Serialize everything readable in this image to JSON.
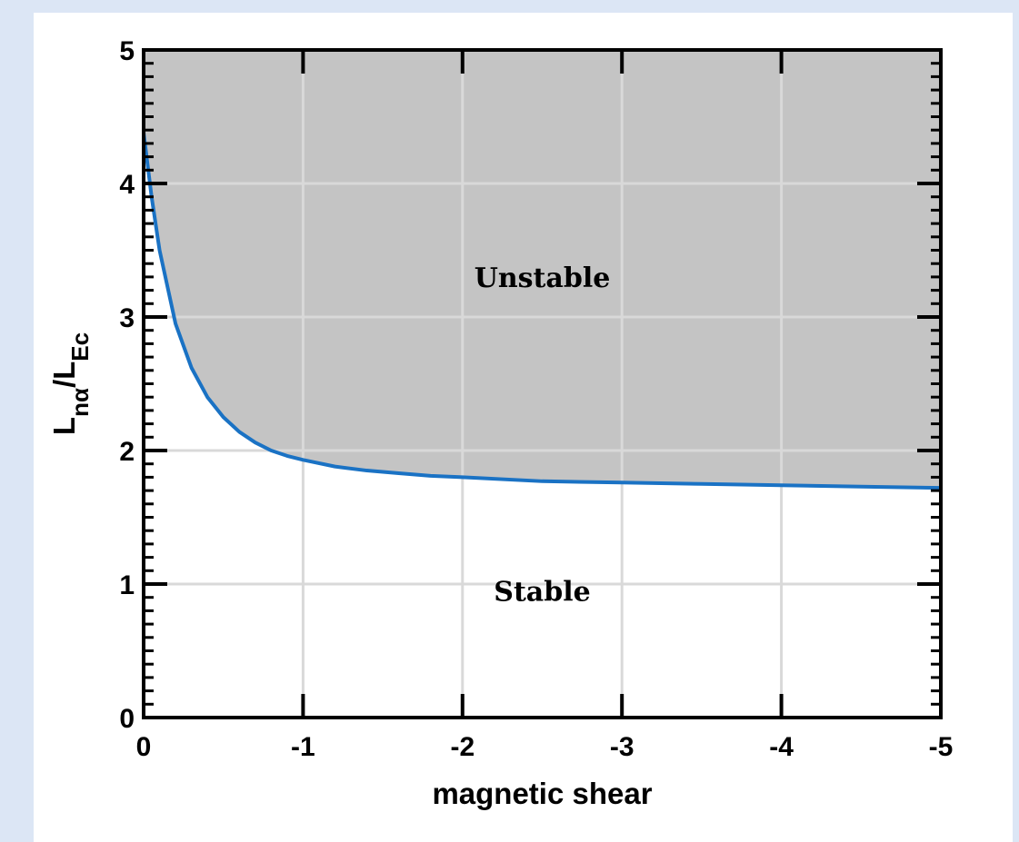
{
  "chart_data": {
    "type": "line",
    "title": "",
    "xlabel": "magnetic shear",
    "ylabel": {
      "main": "L",
      "sub1": "nα",
      "slash": "/L",
      "sub2": "Ec"
    },
    "xlim": [
      0,
      -5
    ],
    "ylim": [
      0,
      5
    ],
    "x_ticks": [
      "0",
      "-1",
      "-2",
      "-3",
      "-4",
      "-5"
    ],
    "x_tick_values": [
      0,
      -1,
      -2,
      -3,
      -4,
      -5
    ],
    "y_ticks": [
      "0",
      "1",
      "2",
      "3",
      "4",
      "5"
    ],
    "y_tick_values": [
      0,
      1,
      2,
      3,
      4,
      5
    ],
    "grid": true,
    "series": [
      {
        "color": "#1a72c4",
        "x": [
          0,
          -0.05,
          -0.1,
          -0.2,
          -0.3,
          -0.4,
          -0.5,
          -0.6,
          -0.7,
          -0.8,
          -0.9,
          -1.0,
          -1.2,
          -1.4,
          -1.6,
          -1.8,
          -2.0,
          -2.5,
          -3.0,
          -3.5,
          -4.0,
          -4.5,
          -5.0
        ],
        "y": [
          4.38,
          3.9,
          3.5,
          2.95,
          2.62,
          2.4,
          2.25,
          2.14,
          2.06,
          2.0,
          1.96,
          1.93,
          1.88,
          1.85,
          1.83,
          1.81,
          1.8,
          1.77,
          1.76,
          1.75,
          1.74,
          1.73,
          1.72
        ]
      }
    ],
    "fill_above": {
      "color": "#c4c4c4"
    },
    "annotations": [
      {
        "text": "Unstable",
        "x": -2.5,
        "y": 3.3
      },
      {
        "text": "Stable",
        "x": -2.5,
        "y": 0.95
      }
    ]
  }
}
